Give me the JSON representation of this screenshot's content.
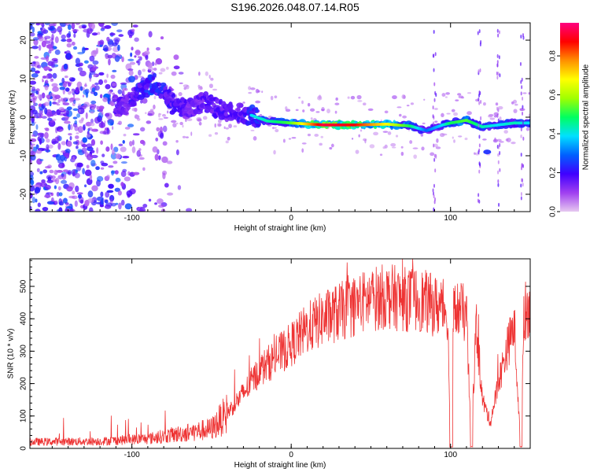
{
  "title": "S196.2026.048.07.14.R05",
  "chart_data": [
    {
      "type": "heatmap",
      "name": "spectrogram",
      "xlabel": "Height of straight line (km)",
      "ylabel": "Frequency (Hz)",
      "xlim": [
        -164,
        150
      ],
      "ylim": [
        -24.5,
        24.5
      ],
      "xticks": [
        -100,
        0,
        100
      ],
      "yticks": [
        -20,
        -10,
        0,
        10,
        20
      ],
      "colorbar": {
        "label": "Normalized spectral amplitude",
        "range": [
          0.0,
          0.97
        ],
        "ticks": [
          "0.0",
          "0.2",
          "0.4",
          "0.6",
          "0.8"
        ],
        "tick_values": [
          0.0,
          0.2,
          0.4,
          0.6,
          0.8
        ],
        "colors": [
          "#e6c8f0",
          "#a040f0",
          "#4000ff",
          "#0060ff",
          "#00e0ff",
          "#00ff60",
          "#a0ff00",
          "#ffff00",
          "#ff9000",
          "#ff0000",
          "#ff0080"
        ]
      },
      "ridge": {
        "x": [
          -104,
          -95,
          -85,
          -75,
          -65,
          -55,
          -45,
          -35,
          -25,
          -15,
          0,
          20,
          40,
          60,
          75,
          85,
          95,
          100,
          110,
          120,
          130,
          140,
          150
        ],
        "y": [
          3,
          7,
          9,
          4,
          2,
          4,
          2,
          1,
          0.5,
          -1,
          -1.5,
          -2,
          -2,
          -1.8,
          -2.3,
          -3.5,
          -2,
          -1.5,
          -0.8,
          -2.5,
          -2,
          -1.5,
          -1.5
        ],
        "amplitude": [
          0.3,
          0.4,
          0.45,
          0.35,
          0.3,
          0.3,
          0.35,
          0.3,
          0.4,
          0.45,
          0.55,
          0.95,
          0.9,
          0.7,
          0.5,
          0.3,
          0.4,
          0.5,
          0.55,
          0.45,
          0.4,
          0.45,
          0.4
        ]
      }
    },
    {
      "type": "line",
      "name": "snr",
      "xlabel": "Height of straight line (km)",
      "ylabel": "SNR (10 * v/v)",
      "xlim": [
        -164,
        150
      ],
      "ylim": [
        0,
        585
      ],
      "xticks": [
        -100,
        0,
        100
      ],
      "yticks": [
        0,
        100,
        200,
        300,
        400,
        500
      ],
      "color": "#ee3333",
      "envelope": {
        "x": [
          -164,
          -120,
          -90,
          -70,
          -50,
          -40,
          -30,
          -20,
          -10,
          0,
          10,
          20,
          30,
          40,
          50,
          60,
          70,
          80,
          90,
          98,
          100,
          102,
          105,
          110,
          113,
          116,
          120,
          125,
          130,
          135,
          140,
          144,
          146,
          148,
          150
        ],
        "y": [
          20,
          22,
          30,
          45,
          60,
          110,
          170,
          240,
          280,
          320,
          370,
          400,
          420,
          440,
          460,
          470,
          460,
          460,
          440,
          430,
          5,
          420,
          430,
          410,
          5,
          390,
          150,
          80,
          200,
          300,
          380,
          5,
          420,
          430,
          440
        ]
      }
    }
  ]
}
